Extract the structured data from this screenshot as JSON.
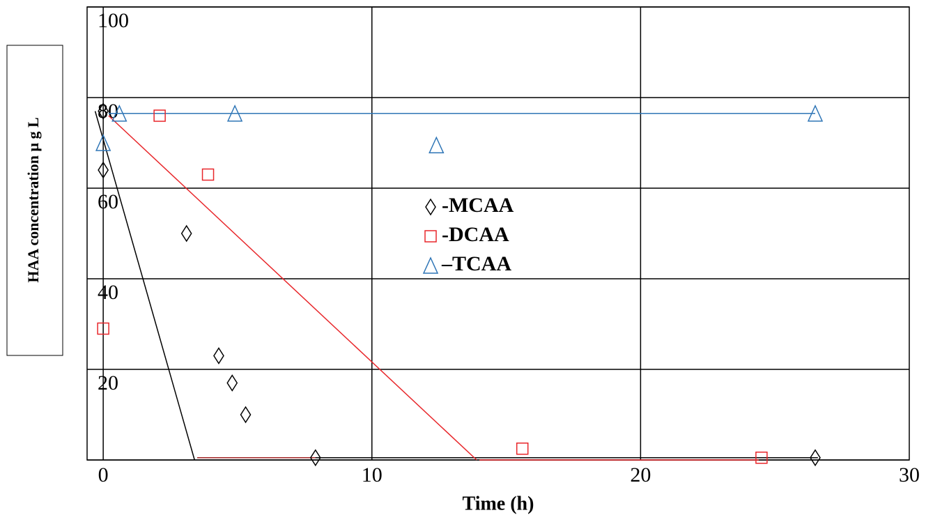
{
  "chart_data": {
    "type": "scatter",
    "x_label": "Time (h)",
    "y_label": "HAA concentration μ g L",
    "xlim": [
      -0.6,
      30
    ],
    "xticks": [
      0,
      10,
      20,
      30
    ],
    "ylim": [
      0,
      100
    ],
    "yticks": [
      0,
      20,
      40,
      60,
      80,
      100
    ],
    "grid": true,
    "legend": "center",
    "series": [
      {
        "name": "-MCAA",
        "color": "#000000",
        "marker": "diamond",
        "x": [
          0,
          0,
          3.1,
          4.3,
          4.8,
          5.3,
          7.9,
          26.5
        ],
        "values": [
          77,
          64,
          50,
          23,
          17,
          10,
          0.5,
          0.5
        ]
      },
      {
        "name": "-DCAA",
        "color": "#e8262a",
        "marker": "square",
        "x": [
          2.1,
          3.9,
          0,
          15.6,
          24.5
        ],
        "values": [
          76,
          63,
          29,
          2.5,
          0.5
        ]
      },
      {
        "name": "–TCAA",
        "color": "#2e75b6",
        "marker": "triangle",
        "x": [
          0.6,
          4.9,
          0,
          12.4,
          26.5
        ],
        "values": [
          76.5,
          76.5,
          70,
          69.5,
          76.5
        ]
      }
    ],
    "trend_lines": [
      {
        "color": "#000000",
        "x": [
          -0.3,
          3.4
        ],
        "values": [
          77,
          0
        ]
      },
      {
        "color": "#000000",
        "x": [
          3.5,
          26.6
        ],
        "values": [
          0.5,
          0.5
        ]
      },
      {
        "color": "#e8262a",
        "x": [
          0.2,
          13.9
        ],
        "values": [
          76,
          0
        ]
      },
      {
        "color": "#e8262a",
        "x": [
          14,
          24.4
        ],
        "values": [
          0,
          0
        ]
      },
      {
        "color": "#a02020",
        "x": [
          3.5,
          7.9
        ],
        "values": [
          0.5,
          0.5
        ]
      },
      {
        "color": "#2e75b6",
        "x": [
          0.2,
          26.5
        ],
        "values": [
          76.5,
          76.5
        ]
      }
    ]
  }
}
